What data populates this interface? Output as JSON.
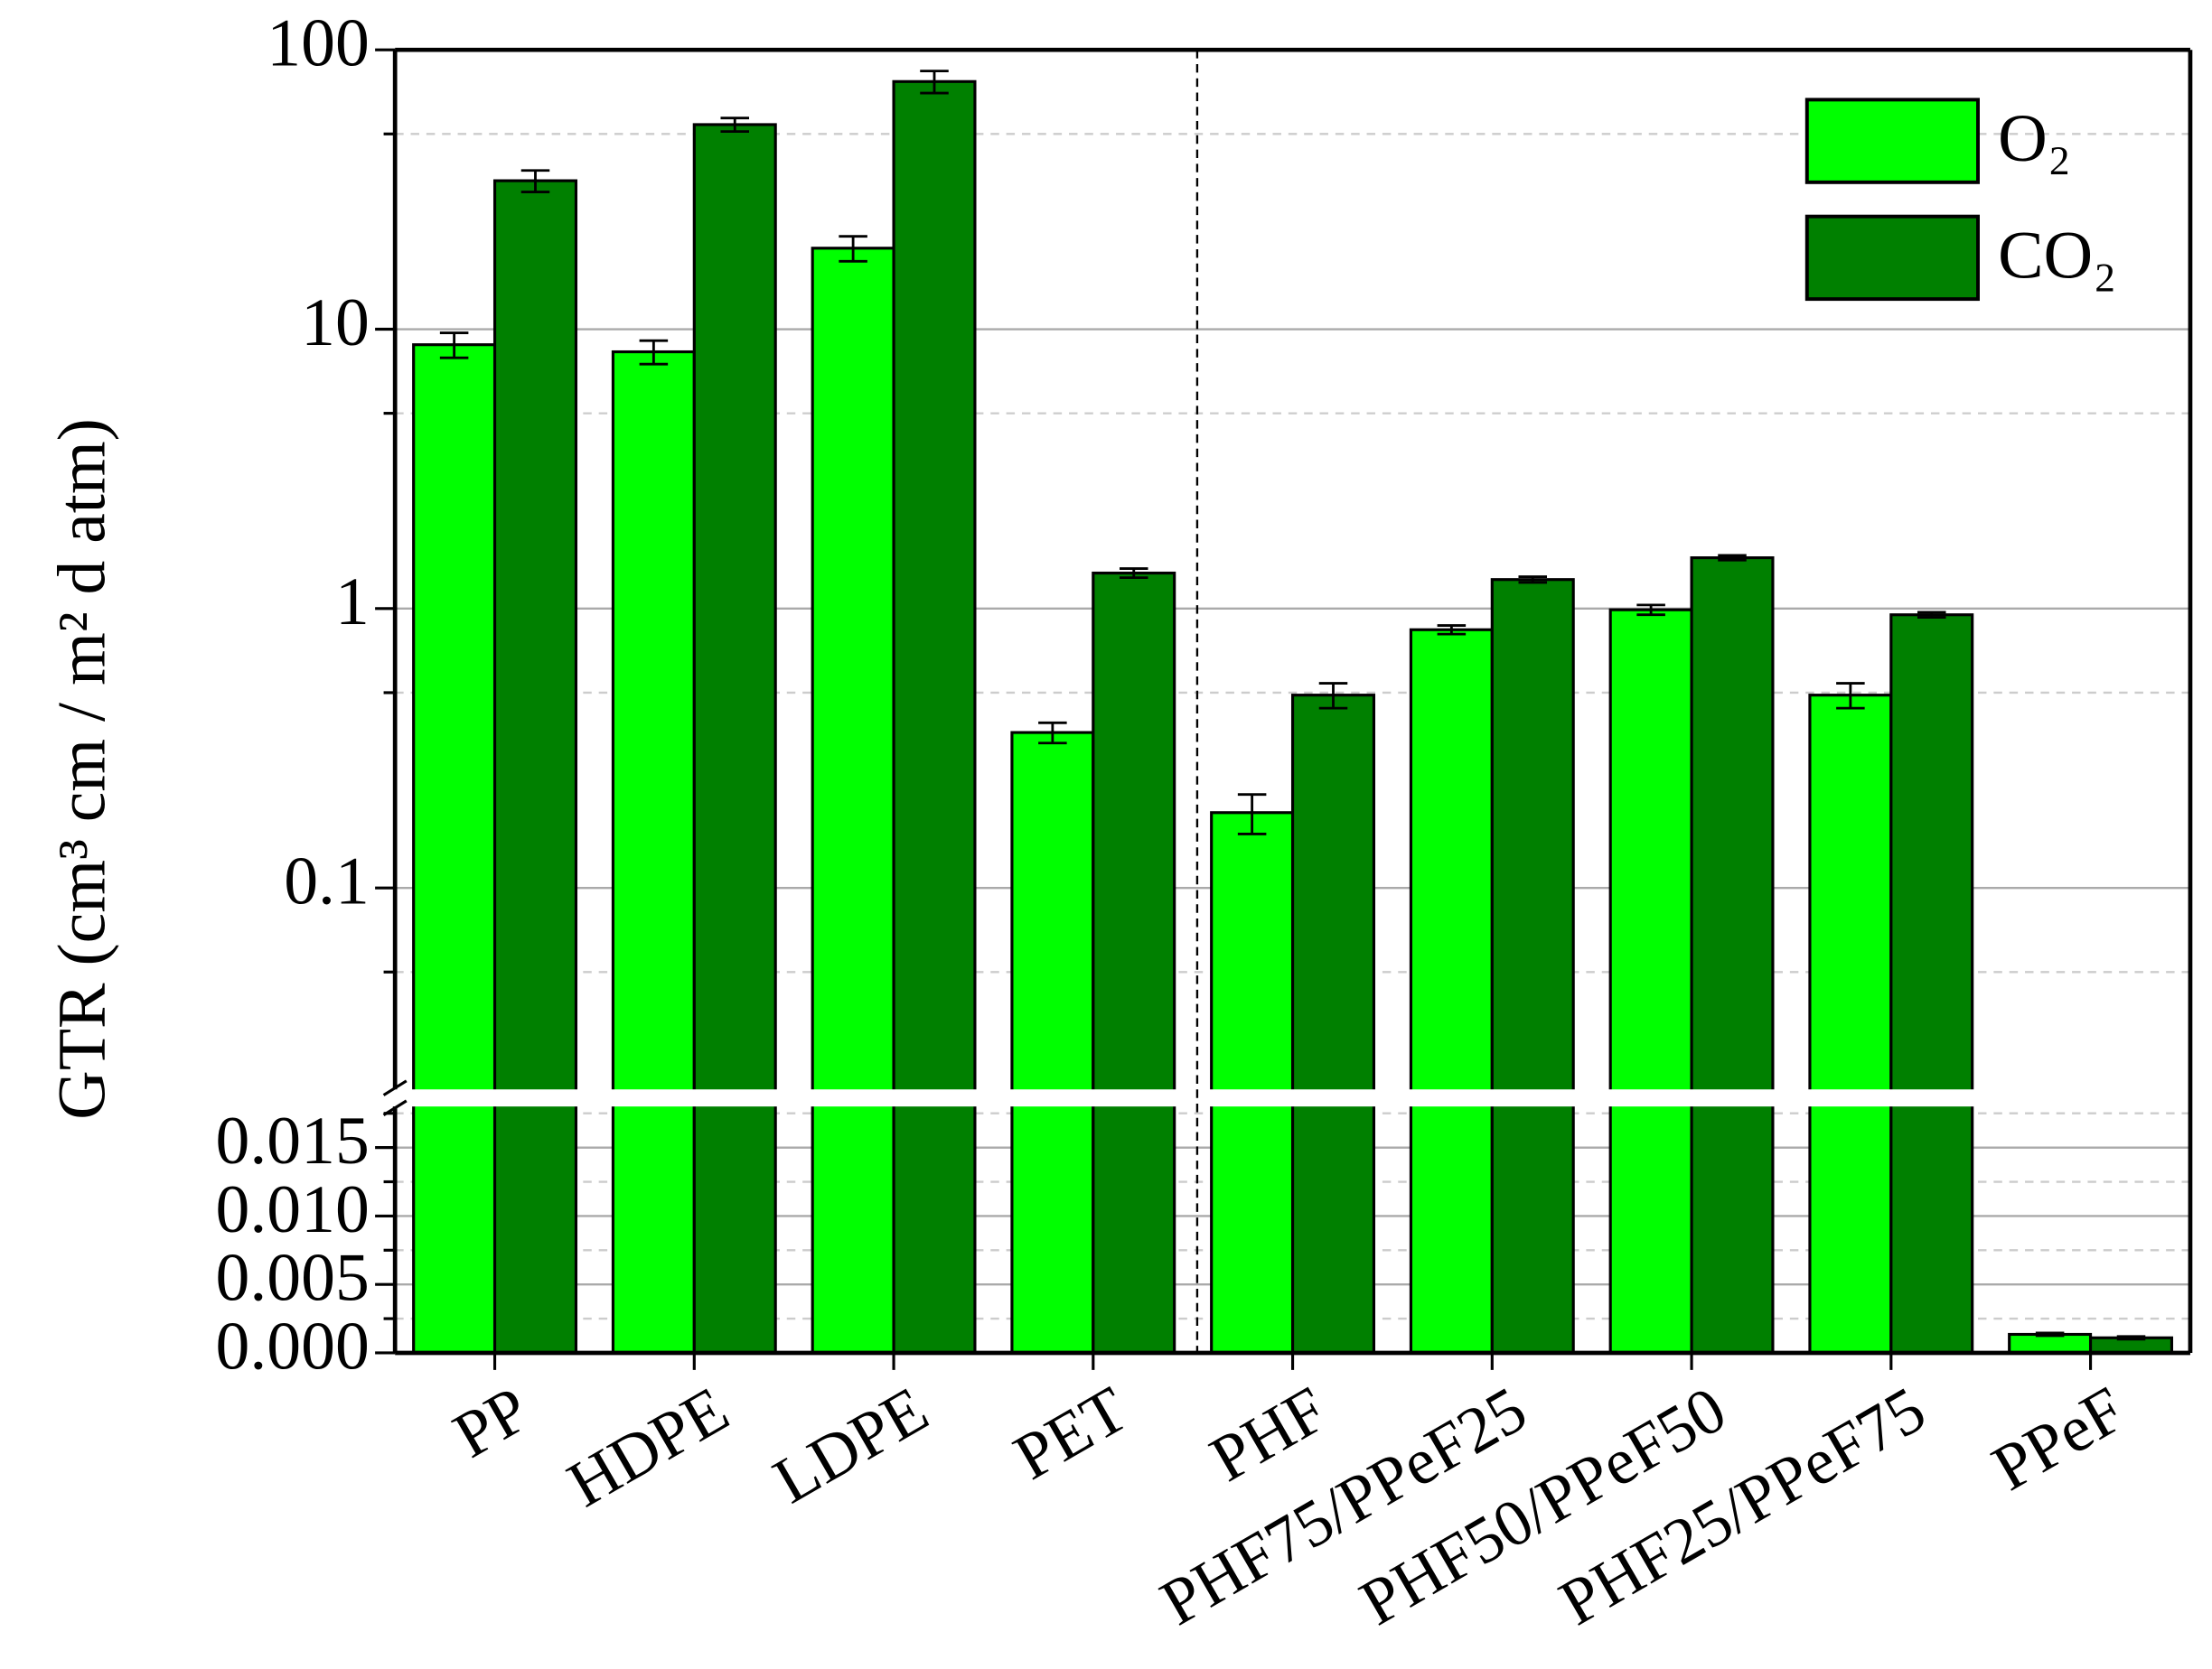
{
  "chart_data": {
    "type": "bar",
    "y_label": "GTR (cm³ cm / m² d atm)",
    "categories": [
      "PP",
      "HDPE",
      "LDPE",
      "PET",
      "PHF",
      "PHF75/PPeF25",
      "PHF50/PPeF50",
      "PHF25/PPeF75",
      "PPeF"
    ],
    "series": [
      {
        "name": "O₂",
        "color": "#00ff00",
        "values": [
          8.8,
          8.3,
          19.5,
          0.36,
          0.186,
          0.84,
          0.99,
          0.49,
          0.00135
        ],
        "errors": [
          0.9,
          0.8,
          2,
          0.03,
          0.03,
          0.03,
          0.04,
          0.05,
          0.0001
        ]
      },
      {
        "name": "CO₂",
        "color": "#008000",
        "values": [
          34,
          54,
          77,
          1.34,
          0.49,
          1.27,
          1.52,
          0.95,
          0.0011
        ],
        "errors": [
          3,
          3,
          7,
          0.05,
          0.05,
          0.03,
          0.03,
          0.02,
          0.0001
        ]
      }
    ],
    "ylim_upper": [
      0.019,
      100
    ],
    "log_scale_upper": true,
    "yticks_upper": [
      0.1,
      1,
      10,
      100
    ],
    "minor_yticks_upper": [
      0.05,
      0.5,
      5,
      50
    ],
    "ylim_lower": [
      0,
      0.018
    ],
    "yticks_lower": [
      {
        "value": 0,
        "label": "0.000"
      },
      {
        "value": 0.005,
        "label": "0.005"
      },
      {
        "value": 0.01,
        "label": "0.010"
      },
      {
        "value": 0.015,
        "label": "0.015"
      }
    ],
    "minor_yticks_lower": [
      0.0025,
      0.0075,
      0.0125,
      0.0175
    ],
    "grid": true,
    "legend": "upper right"
  }
}
